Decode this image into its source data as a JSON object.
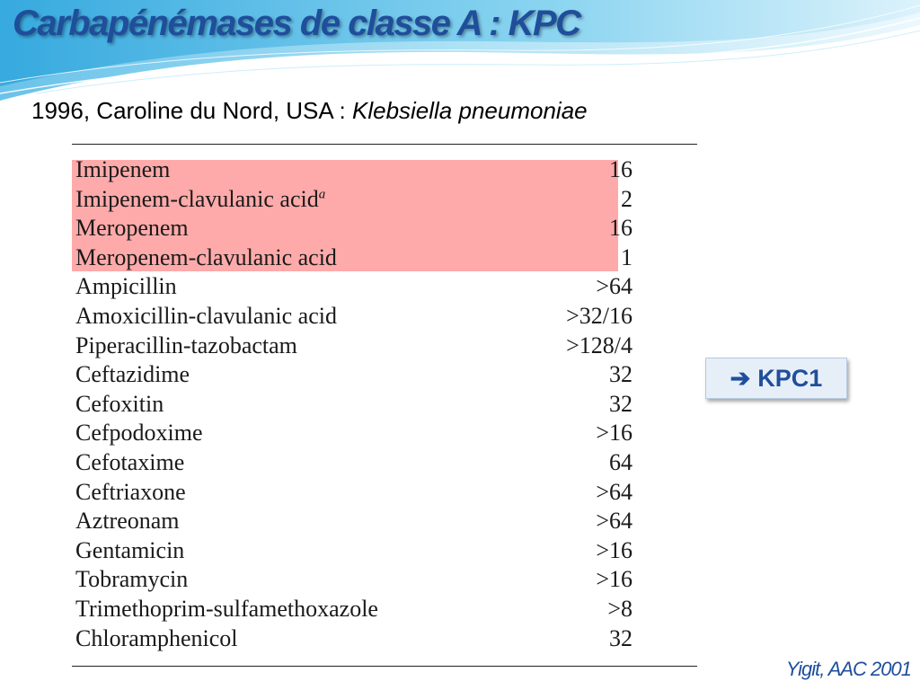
{
  "slide": {
    "title": "Carbapénémases de classe A : KPC",
    "subtitle_prefix": "1996, Caroline du Nord, USA  : ",
    "subtitle_organism": "Klebsiella pneumoniae",
    "callout_arrow": "➔",
    "callout_label": "KPC1",
    "citation": "Yigit, AAC 2001"
  },
  "table": {
    "highlight_color": "#ffaaaa",
    "rows": [
      {
        "drug": "Imipenem",
        "mic": "16",
        "highlighted": true
      },
      {
        "drug": "Imipenem-clavulanic acid",
        "footnote": "a",
        "mic": "2",
        "highlighted": true
      },
      {
        "drug": "Meropenem",
        "mic": "16",
        "highlighted": true
      },
      {
        "drug": "Meropenem-clavulanic acid",
        "mic": "1",
        "highlighted": true
      },
      {
        "drug": "Ampicillin",
        "mic": ">64"
      },
      {
        "drug": "Amoxicillin-clavulanic acid",
        "mic": ">32/16"
      },
      {
        "drug": "Piperacillin-tazobactam",
        "mic": ">128/4"
      },
      {
        "drug": "Ceftazidime",
        "mic": "32"
      },
      {
        "drug": "Cefoxitin",
        "mic": "32"
      },
      {
        "drug": "Cefpodoxime",
        "mic": ">16"
      },
      {
        "drug": "Cefotaxime",
        "mic": "64"
      },
      {
        "drug": "Ceftriaxone",
        "mic": ">64"
      },
      {
        "drug": "Aztreonam",
        "mic": ">64"
      },
      {
        "drug": "Gentamicin",
        "mic": ">16"
      },
      {
        "drug": "Tobramycin",
        "mic": ">16"
      },
      {
        "drug": "Trimethoprim-sulfamethoxazole",
        "mic": ">8"
      },
      {
        "drug": "Chloramphenicol",
        "mic": "32"
      }
    ]
  },
  "colors": {
    "title": "#1f4e9b",
    "decor_wave": "#5cc3e8",
    "callout_bg": "#e6eef8"
  }
}
